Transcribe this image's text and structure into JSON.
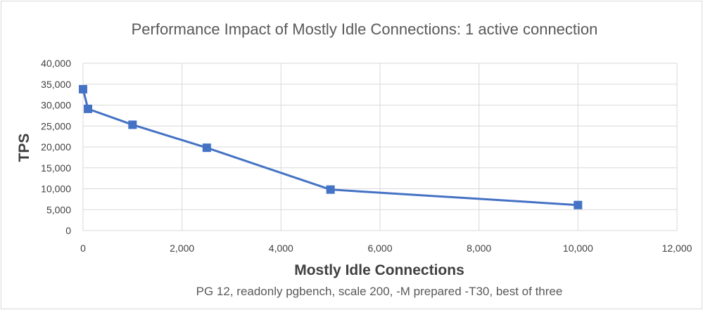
{
  "chart_data": {
    "type": "scatter",
    "title": "Performance Impact of Mostly Idle Connections: 1 active connection",
    "subtitle": "PG 12, readonly pgbench, scale 200, -M prepared -T30, best of three",
    "xlabel": "Mostly Idle Connections",
    "ylabel": "TPS",
    "xlim": [
      0,
      12000
    ],
    "ylim": [
      0,
      40000
    ],
    "x_ticks": [
      0,
      2000,
      4000,
      6000,
      8000,
      10000,
      12000
    ],
    "x_tick_labels": [
      "0",
      "2,000",
      "4,000",
      "6,000",
      "8,000",
      "10,000",
      "12,000"
    ],
    "y_ticks": [
      0,
      5000,
      10000,
      15000,
      20000,
      25000,
      30000,
      35000,
      40000
    ],
    "y_tick_labels": [
      "0",
      "5,000",
      "10,000",
      "15,000",
      "20,000",
      "25,000",
      "30,000",
      "35,000",
      "40,000"
    ],
    "grid": true,
    "series": [
      {
        "name": "TPS",
        "color": "#4472c4",
        "marker": "square",
        "x": [
          0,
          100,
          1000,
          2500,
          5000,
          10000
        ],
        "y": [
          33800,
          29100,
          25300,
          19800,
          9800,
          6100
        ]
      }
    ]
  }
}
